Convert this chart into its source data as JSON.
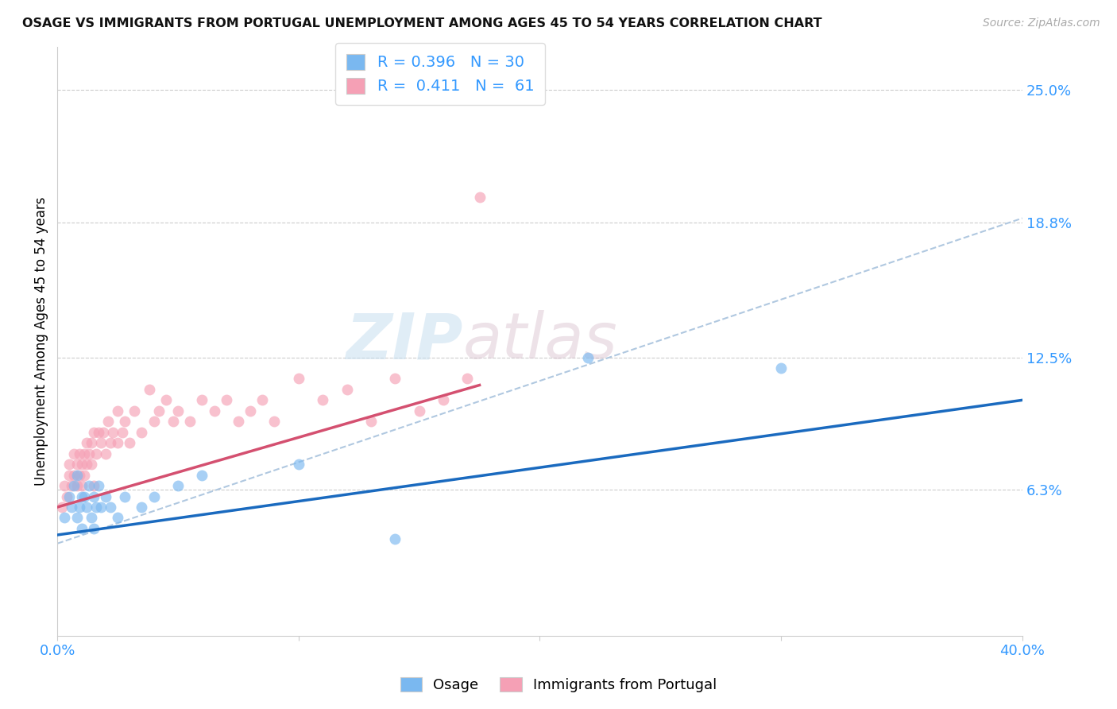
{
  "title": "OSAGE VS IMMIGRANTS FROM PORTUGAL UNEMPLOYMENT AMONG AGES 45 TO 54 YEARS CORRELATION CHART",
  "source": "Source: ZipAtlas.com",
  "ylabel": "Unemployment Among Ages 45 to 54 years",
  "xlim": [
    0.0,
    0.4
  ],
  "ylim": [
    -0.005,
    0.27
  ],
  "xticks": [
    0.0,
    0.1,
    0.2,
    0.3,
    0.4
  ],
  "xticklabels": [
    "0.0%",
    "",
    "",
    "",
    "40.0%"
  ],
  "ytick_right_labels": [
    "25.0%",
    "18.8%",
    "12.5%",
    "6.3%"
  ],
  "ytick_right_values": [
    0.25,
    0.188,
    0.125,
    0.063
  ],
  "blue_R": "0.396",
  "blue_N": "30",
  "pink_R": "0.411",
  "pink_N": "61",
  "blue_color": "#7ab8f0",
  "pink_color": "#f5a0b5",
  "blue_line_color": "#1a6abf",
  "pink_line_color": "#d45070",
  "dashed_line_color": "#b0c8e0",
  "watermark_zip": "ZIP",
  "watermark_atlas": "atlas",
  "legend_label_blue": "Osage",
  "legend_label_pink": "Immigrants from Portugal",
  "blue_scatter_x": [
    0.003,
    0.005,
    0.006,
    0.007,
    0.008,
    0.008,
    0.009,
    0.01,
    0.01,
    0.011,
    0.012,
    0.013,
    0.014,
    0.015,
    0.015,
    0.016,
    0.017,
    0.018,
    0.02,
    0.022,
    0.025,
    0.028,
    0.035,
    0.04,
    0.05,
    0.06,
    0.1,
    0.14,
    0.22,
    0.3
  ],
  "blue_scatter_y": [
    0.05,
    0.06,
    0.055,
    0.065,
    0.05,
    0.07,
    0.055,
    0.06,
    0.045,
    0.06,
    0.055,
    0.065,
    0.05,
    0.06,
    0.045,
    0.055,
    0.065,
    0.055,
    0.06,
    0.055,
    0.05,
    0.06,
    0.055,
    0.06,
    0.065,
    0.07,
    0.075,
    0.04,
    0.125,
    0.12
  ],
  "pink_scatter_x": [
    0.002,
    0.003,
    0.004,
    0.005,
    0.005,
    0.006,
    0.007,
    0.007,
    0.008,
    0.008,
    0.009,
    0.009,
    0.01,
    0.01,
    0.011,
    0.011,
    0.012,
    0.012,
    0.013,
    0.014,
    0.014,
    0.015,
    0.015,
    0.016,
    0.017,
    0.018,
    0.019,
    0.02,
    0.021,
    0.022,
    0.023,
    0.025,
    0.025,
    0.027,
    0.028,
    0.03,
    0.032,
    0.035,
    0.038,
    0.04,
    0.042,
    0.045,
    0.048,
    0.05,
    0.055,
    0.06,
    0.065,
    0.07,
    0.075,
    0.08,
    0.085,
    0.09,
    0.1,
    0.11,
    0.12,
    0.13,
    0.14,
    0.15,
    0.16,
    0.17,
    0.175
  ],
  "pink_scatter_y": [
    0.055,
    0.065,
    0.06,
    0.07,
    0.075,
    0.065,
    0.07,
    0.08,
    0.065,
    0.075,
    0.07,
    0.08,
    0.065,
    0.075,
    0.08,
    0.07,
    0.085,
    0.075,
    0.08,
    0.085,
    0.075,
    0.065,
    0.09,
    0.08,
    0.09,
    0.085,
    0.09,
    0.08,
    0.095,
    0.085,
    0.09,
    0.1,
    0.085,
    0.09,
    0.095,
    0.085,
    0.1,
    0.09,
    0.11,
    0.095,
    0.1,
    0.105,
    0.095,
    0.1,
    0.095,
    0.105,
    0.1,
    0.105,
    0.095,
    0.1,
    0.105,
    0.095,
    0.115,
    0.105,
    0.11,
    0.095,
    0.115,
    0.1,
    0.105,
    0.115,
    0.2
  ],
  "blue_trendline_x": [
    0.0,
    0.4
  ],
  "blue_trendline_y": [
    0.042,
    0.105
  ],
  "pink_trendline_x": [
    0.0,
    0.175
  ],
  "pink_trendline_y": [
    0.055,
    0.112
  ],
  "dashed_line_x": [
    0.0,
    0.4
  ],
  "dashed_line_y": [
    0.038,
    0.19
  ]
}
